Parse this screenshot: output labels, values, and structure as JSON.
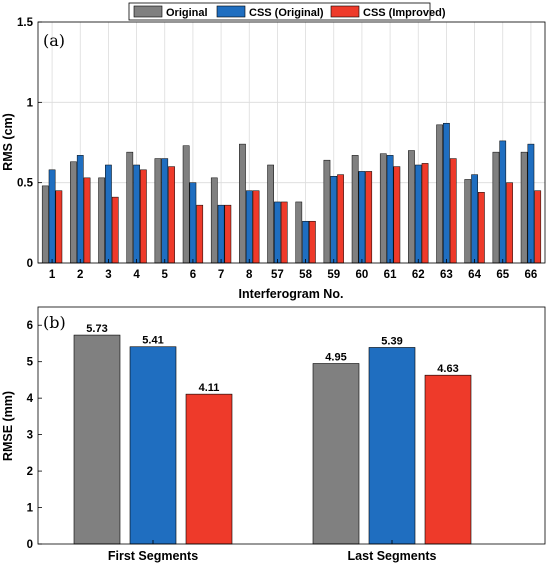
{
  "legend": {
    "entries": [
      {
        "label": "Original",
        "color": "#808080"
      },
      {
        "label": "CSS (Original)",
        "color": "#1f6ec0"
      },
      {
        "label": "CSS (Improved)",
        "color": "#ee3a2a"
      }
    ]
  },
  "chart_data": [
    {
      "type": "bar",
      "panel_label": "(a)",
      "xlabel": "Interferogram No.",
      "ylabel": "RMS (cm)",
      "ylim": [
        0,
        1.5
      ],
      "yticks": [
        "0",
        "0.5",
        "1",
        "1.5"
      ],
      "grid": true,
      "categories": [
        "1",
        "2",
        "3",
        "4",
        "5",
        "6",
        "7",
        "8",
        "57",
        "58",
        "59",
        "60",
        "61",
        "62",
        "63",
        "64",
        "65",
        "66"
      ],
      "series": [
        {
          "name": "Original",
          "color": "#808080",
          "values": [
            0.48,
            0.63,
            0.53,
            0.69,
            0.65,
            0.73,
            0.53,
            0.74,
            0.61,
            0.38,
            0.64,
            0.67,
            0.68,
            0.7,
            0.86,
            0.52,
            0.69,
            0.69
          ]
        },
        {
          "name": "CSS (Original)",
          "color": "#1f6ec0",
          "values": [
            0.58,
            0.67,
            0.61,
            0.61,
            0.65,
            0.5,
            0.36,
            0.45,
            0.38,
            0.26,
            0.54,
            0.57,
            0.67,
            0.61,
            0.87,
            0.55,
            0.76,
            0.74
          ]
        },
        {
          "name": "CSS (Improved)",
          "color": "#ee3a2a",
          "values": [
            0.45,
            0.53,
            0.41,
            0.58,
            0.6,
            0.36,
            0.36,
            0.45,
            0.38,
            0.26,
            0.55,
            0.57,
            0.6,
            0.62,
            0.65,
            0.44,
            0.5,
            0.45
          ]
        }
      ]
    },
    {
      "type": "bar",
      "panel_label": "(b)",
      "xlabel": "",
      "ylabel": "RMSE (mm)",
      "ylim": [
        0,
        6.5
      ],
      "yticks": [
        "0",
        "1",
        "2",
        "3",
        "4",
        "5",
        "6"
      ],
      "grid": false,
      "categories": [
        "First Segments",
        "Last Segments"
      ],
      "series": [
        {
          "name": "Original",
          "color": "#808080",
          "values": [
            5.73,
            4.95
          ],
          "labels": [
            "5.73",
            "4.95"
          ]
        },
        {
          "name": "CSS (Original)",
          "color": "#1f6ec0",
          "values": [
            5.41,
            5.39
          ],
          "labels": [
            "5.41",
            "5.39"
          ]
        },
        {
          "name": "CSS (Improved)",
          "color": "#ee3a2a",
          "values": [
            4.11,
            4.63
          ],
          "labels": [
            "4.11",
            "4.63"
          ]
        }
      ]
    }
  ]
}
